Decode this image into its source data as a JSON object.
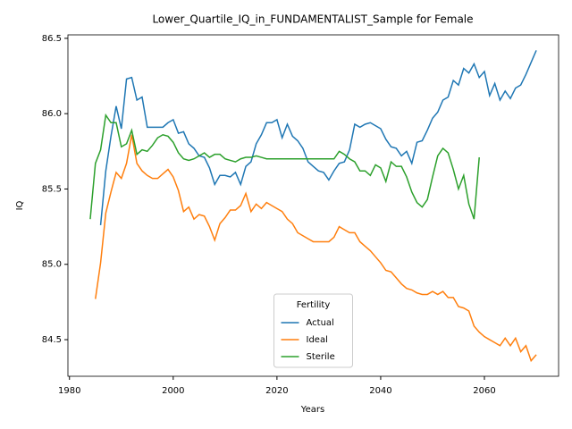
{
  "chart_data": {
    "type": "line",
    "title": "Lower_Quartile_IQ_in_FUNDAMENTALIST_Sample for Female",
    "x_label": "Years",
    "y_label": "IQ",
    "legend_title": "Fertility",
    "legend": "lower center",
    "x": [
      1984,
      1985,
      1986,
      1987,
      1988,
      1989,
      1990,
      1991,
      1992,
      1993,
      1994,
      1995,
      1996,
      1997,
      1998,
      1999,
      2000,
      2001,
      2002,
      2003,
      2004,
      2005,
      2006,
      2007,
      2008,
      2009,
      2010,
      2011,
      2012,
      2013,
      2014,
      2015,
      2016,
      2017,
      2018,
      2019,
      2020,
      2021,
      2022,
      2023,
      2024,
      2025,
      2026,
      2027,
      2028,
      2029,
      2030,
      2031,
      2032,
      2033,
      2034,
      2035,
      2036,
      2037,
      2038,
      2039,
      2040,
      2041,
      2042,
      2043,
      2044,
      2045,
      2046,
      2047,
      2048,
      2049,
      2050,
      2051,
      2052,
      2053,
      2054,
      2055,
      2056,
      2057,
      2058,
      2059,
      2060,
      2061,
      2062,
      2063,
      2064,
      2065,
      2066,
      2067,
      2068,
      2069,
      2070
    ],
    "series": [
      {
        "name": "Actual",
        "color": "#1f77b4",
        "values": [
          null,
          null,
          85.26,
          85.62,
          85.85,
          86.05,
          85.9,
          86.23,
          86.24,
          86.09,
          86.11,
          85.91,
          85.91,
          85.91,
          85.91,
          85.94,
          85.96,
          85.87,
          85.88,
          85.8,
          85.77,
          85.72,
          85.71,
          85.64,
          85.53,
          85.59,
          85.59,
          85.58,
          85.61,
          85.53,
          85.65,
          85.68,
          85.8,
          85.86,
          85.94,
          85.94,
          85.96,
          85.84,
          85.93,
          85.85,
          85.82,
          85.77,
          85.68,
          85.65,
          85.62,
          85.61,
          85.56,
          85.62,
          85.67,
          85.68,
          85.76,
          85.93,
          85.91,
          85.93,
          85.94,
          85.92,
          85.9,
          85.83,
          85.78,
          85.77,
          85.72,
          85.75,
          85.67,
          85.81,
          85.82,
          85.89,
          85.97,
          86.01,
          86.09,
          86.11,
          86.22,
          86.19,
          86.3,
          86.27,
          86.33,
          86.24,
          86.28,
          86.12,
          86.2,
          86.09,
          86.15,
          86.1,
          86.17,
          86.19,
          86.26,
          86.34,
          86.42
        ]
      },
      {
        "name": "Ideal",
        "color": "#ff7f0e",
        "values": [
          null,
          84.77,
          85.01,
          85.34,
          85.48,
          85.61,
          85.57,
          85.67,
          85.86,
          85.67,
          85.62,
          85.59,
          85.57,
          85.57,
          85.6,
          85.63,
          85.58,
          85.49,
          85.35,
          85.38,
          85.3,
          85.33,
          85.32,
          85.25,
          85.16,
          85.27,
          85.31,
          85.36,
          85.36,
          85.39,
          85.47,
          85.35,
          85.4,
          85.37,
          85.41,
          85.39,
          85.37,
          85.35,
          85.3,
          85.27,
          85.21,
          85.19,
          85.17,
          85.15,
          85.15,
          85.15,
          85.15,
          85.18,
          85.25,
          85.23,
          85.21,
          85.21,
          85.15,
          85.12,
          85.09,
          85.05,
          85.01,
          84.96,
          84.95,
          84.91,
          84.87,
          84.84,
          84.83,
          84.81,
          84.8,
          84.8,
          84.82,
          84.8,
          84.82,
          84.78,
          84.78,
          84.72,
          84.71,
          84.69,
          84.59,
          84.55,
          84.52,
          84.5,
          84.48,
          84.46,
          84.51,
          84.46,
          84.51,
          84.42,
          84.46,
          84.36,
          84.4
        ]
      },
      {
        "name": "Sterile",
        "color": "#2ca02c",
        "values": [
          85.3,
          85.67,
          85.76,
          85.99,
          85.94,
          85.94,
          85.78,
          85.8,
          85.89,
          85.73,
          85.76,
          85.75,
          85.79,
          85.84,
          85.86,
          85.85,
          85.81,
          85.74,
          85.7,
          85.69,
          85.7,
          85.72,
          85.74,
          85.71,
          85.73,
          85.73,
          85.7,
          85.69,
          85.68,
          85.7,
          85.71,
          85.71,
          85.72,
          85.71,
          85.7,
          85.7,
          85.7,
          85.7,
          85.7,
          85.7,
          85.7,
          85.7,
          85.7,
          85.7,
          85.7,
          85.7,
          85.7,
          85.7,
          85.75,
          85.73,
          85.7,
          85.68,
          85.62,
          85.62,
          85.59,
          85.66,
          85.64,
          85.55,
          85.68,
          85.65,
          85.65,
          85.58,
          85.48,
          85.41,
          85.38,
          85.43,
          85.58,
          85.72,
          85.77,
          85.74,
          85.63,
          85.5,
          85.59,
          85.4,
          85.3,
          85.71,
          null,
          null,
          null,
          null,
          null,
          null,
          null,
          null,
          null,
          null,
          null
        ]
      }
    ],
    "xlim": [
      1979.7,
      2074.3
    ],
    "ylim": [
      84.257,
      86.523
    ],
    "xticks": [
      1980,
      2000,
      2020,
      2040,
      2060
    ],
    "yticks": [
      84.5,
      {
        "value": 85.0,
        "label": "85.0"
      },
      85.5,
      {
        "value": 86.0,
        "label": "86.0"
      },
      86.5
    ]
  }
}
